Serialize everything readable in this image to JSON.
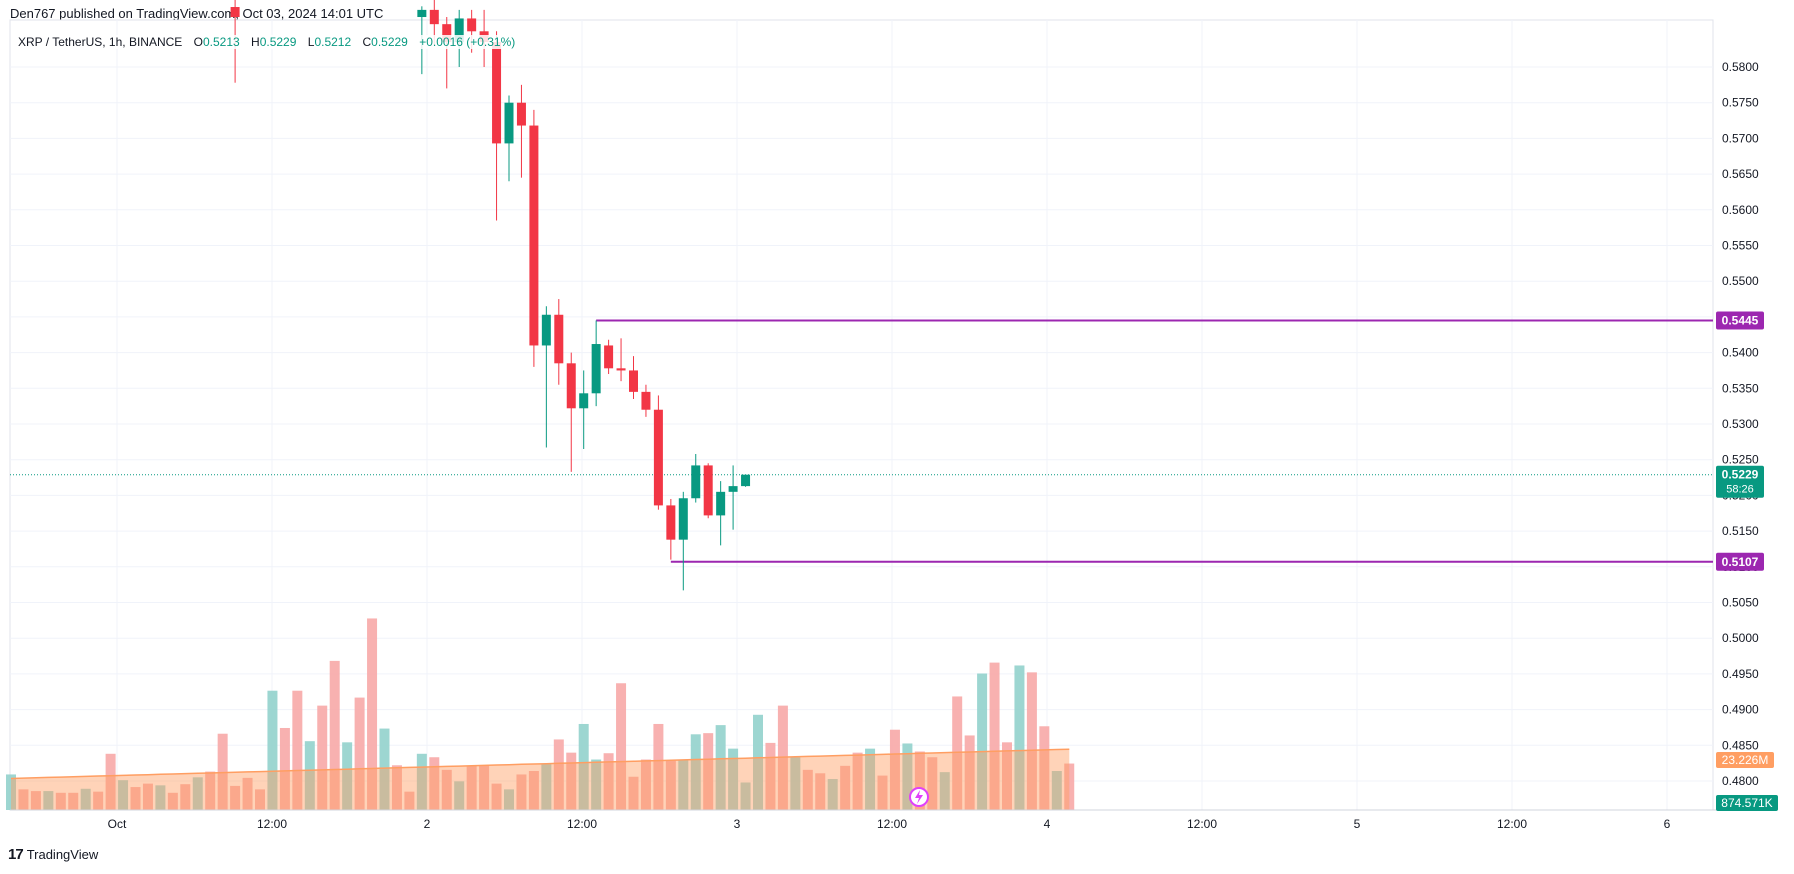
{
  "header": {
    "published": "Den767 published on TradingView.com, Oct 03, 2024 14:01 UTC"
  },
  "symbol": {
    "name": "XRP / TetherUS, 1h, BINANCE",
    "open_label": "O",
    "open": "0.5213",
    "high_label": "H",
    "high": "0.5229",
    "low_label": "L",
    "low": "0.5212",
    "close_label": "C",
    "close": "0.5229",
    "change": "+0.0016 (+0.31%)"
  },
  "footer": {
    "brand": "TradingView",
    "logo_text": "17"
  },
  "colors": {
    "up": "#089981",
    "down": "#f23645",
    "up_vol": "#92d2cc",
    "down_vol": "#f7a9a7",
    "level_line": "#9c27b0",
    "vol_ma": "#ff9e62",
    "grid": "#f0f3fa",
    "axis_text": "#131722",
    "price_line": "#089981"
  },
  "chart_data": {
    "type": "candlestick",
    "timeframe": "1h",
    "x_ticks": [
      "Oct",
      "12:00",
      "2",
      "12:00",
      "3",
      "12:00",
      "4",
      "12:00",
      "5",
      "12:00",
      "6"
    ],
    "y_ticks": [
      "0.5800",
      "0.5750",
      "0.5700",
      "0.5650",
      "0.5600",
      "0.5550",
      "0.5500",
      "0.5450",
      "0.5400",
      "0.5350",
      "0.5300",
      "0.5250",
      "0.5200",
      "0.5150",
      "0.5100",
      "0.5050",
      "0.5000",
      "0.4950",
      "0.4900",
      "0.4850",
      "0.4800"
    ],
    "ylim": [
      0.476,
      0.584
    ],
    "grid": true,
    "candles": [
      {
        "i": 18,
        "o": 0.5884,
        "h": 0.59,
        "l": 0.5778,
        "c": 0.587
      },
      {
        "i": 33,
        "o": 0.587,
        "h": 0.5885,
        "l": 0.579,
        "c": 0.588
      },
      {
        "i": 34,
        "o": 0.588,
        "h": 0.59,
        "l": 0.583,
        "c": 0.586
      },
      {
        "i": 35,
        "o": 0.586,
        "h": 0.587,
        "l": 0.577,
        "c": 0.5835
      },
      {
        "i": 36,
        "o": 0.5835,
        "h": 0.588,
        "l": 0.58,
        "c": 0.5868
      },
      {
        "i": 37,
        "o": 0.5868,
        "h": 0.588,
        "l": 0.582,
        "c": 0.585
      },
      {
        "i": 38,
        "o": 0.585,
        "h": 0.588,
        "l": 0.58,
        "c": 0.5835
      },
      {
        "i": 39,
        "o": 0.5835,
        "h": 0.585,
        "l": 0.5585,
        "c": 0.5693
      },
      {
        "i": 40,
        "o": 0.5693,
        "h": 0.576,
        "l": 0.564,
        "c": 0.575
      },
      {
        "i": 41,
        "o": 0.575,
        "h": 0.5775,
        "l": 0.5645,
        "c": 0.5718
      },
      {
        "i": 42,
        "o": 0.5718,
        "h": 0.574,
        "l": 0.538,
        "c": 0.541
      },
      {
        "i": 43,
        "o": 0.541,
        "h": 0.5465,
        "l": 0.5267,
        "c": 0.5453
      },
      {
        "i": 44,
        "o": 0.5453,
        "h": 0.5475,
        "l": 0.5355,
        "c": 0.5385
      },
      {
        "i": 45,
        "o": 0.5385,
        "h": 0.54,
        "l": 0.5233,
        "c": 0.5322
      },
      {
        "i": 46,
        "o": 0.5322,
        "h": 0.5375,
        "l": 0.5265,
        "c": 0.5343
      },
      {
        "i": 47,
        "o": 0.5343,
        "h": 0.5445,
        "l": 0.5325,
        "c": 0.5412
      },
      {
        "i": 48,
        "o": 0.541,
        "h": 0.5418,
        "l": 0.537,
        "c": 0.5378
      },
      {
        "i": 49,
        "o": 0.5378,
        "h": 0.542,
        "l": 0.536,
        "c": 0.5375
      },
      {
        "i": 50,
        "o": 0.5375,
        "h": 0.5395,
        "l": 0.5335,
        "c": 0.5345
      },
      {
        "i": 51,
        "o": 0.5345,
        "h": 0.5355,
        "l": 0.531,
        "c": 0.532
      },
      {
        "i": 52,
        "o": 0.532,
        "h": 0.534,
        "l": 0.518,
        "c": 0.5186
      },
      {
        "i": 53,
        "o": 0.5186,
        "h": 0.5195,
        "l": 0.511,
        "c": 0.5138
      },
      {
        "i": 54,
        "o": 0.5138,
        "h": 0.5205,
        "l": 0.5067,
        "c": 0.5196
      },
      {
        "i": 55,
        "o": 0.5196,
        "h": 0.5258,
        "l": 0.519,
        "c": 0.5242
      },
      {
        "i": 56,
        "o": 0.5242,
        "h": 0.5245,
        "l": 0.5168,
        "c": 0.5172
      },
      {
        "i": 57,
        "o": 0.5172,
        "h": 0.522,
        "l": 0.513,
        "c": 0.5205
      },
      {
        "i": 58,
        "o": 0.5205,
        "h": 0.5242,
        "l": 0.5152,
        "c": 0.5213
      },
      {
        "i": 59,
        "o": 0.5213,
        "h": 0.5229,
        "l": 0.5212,
        "c": 0.5229
      }
    ],
    "horizontal_levels": [
      {
        "value": "0.5445",
        "start_index": 47
      },
      {
        "value": "0.5107",
        "start_index": 53
      }
    ],
    "current_price": {
      "value": "0.5229",
      "countdown": "58:26"
    },
    "volume": {
      "values": [
        0.62,
        0.36,
        0.33,
        0.33,
        0.3,
        0.3,
        0.37,
        0.32,
        0.98,
        0.52,
        0.4,
        0.46,
        0.43,
        0.3,
        0.45,
        0.57,
        0.67,
        1.33,
        0.42,
        0.56,
        0.36,
        2.08,
        1.43,
        2.08,
        1.2,
        1.82,
        2.6,
        1.18,
        1.96,
        3.34,
        1.42,
        0.78,
        0.32,
        0.98,
        0.92,
        0.7,
        0.5,
        0.77,
        0.77,
        0.46,
        0.36,
        0.62,
        0.68,
        0.8,
        1.23,
        1.0,
        1.5,
        0.88,
        0.99,
        2.21,
        0.58,
        0.88,
        1.5,
        0.86,
        0.88,
        1.32,
        1.34,
        1.48,
        1.07,
        0.48,
        1.66,
        1.17,
        1.82,
        0.92,
        0.7,
        0.64,
        0.54,
        0.77,
        1.0,
        1.07,
        0.6,
        1.4,
        1.16,
        1.02,
        0.92,
        0.66,
        1.98,
        1.3,
        2.38,
        2.57,
        1.18,
        2.52,
        2.4,
        1.46,
        0.68,
        0.81
      ],
      "ma": "23.226M",
      "last": "874.571K"
    }
  }
}
